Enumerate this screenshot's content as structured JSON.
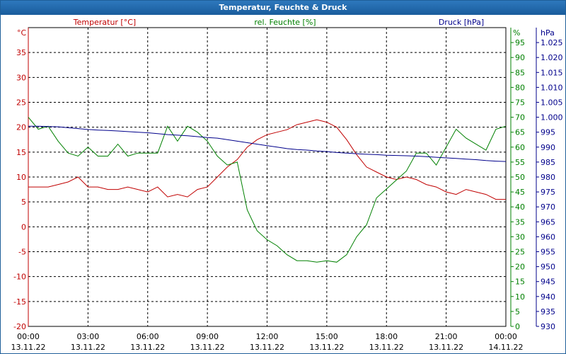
{
  "window": {
    "title": "Temperatur, Feuchte & Druck"
  },
  "colors": {
    "temperature": "#c00000",
    "humidity": "#008000",
    "pressure": "#00008b",
    "grid": "#000000",
    "title_bg": "#1f66a8"
  },
  "chart_data": {
    "type": "line",
    "title": "Temperatur, Feuchte & Druck",
    "grid": true,
    "x": [
      0,
      0.5,
      1,
      1.5,
      2,
      2.5,
      3,
      3.5,
      4,
      4.5,
      5,
      5.5,
      6,
      6.5,
      7,
      7.5,
      8,
      8.5,
      9,
      9.5,
      10,
      10.5,
      11,
      11.5,
      12,
      12.5,
      13,
      13.5,
      14,
      14.5,
      15,
      15.5,
      16,
      16.5,
      17,
      17.5,
      18,
      18.5,
      19,
      19.5,
      20,
      20.5,
      21,
      21.5,
      22,
      22.5,
      23,
      23.5,
      24
    ],
    "x_ticks": [
      {
        "time": "00:00",
        "date": "13.11.22"
      },
      {
        "time": "03:00",
        "date": "13.11.22"
      },
      {
        "time": "06:00",
        "date": "13.11.22"
      },
      {
        "time": "09:00",
        "date": "13.11.22"
      },
      {
        "time": "12:00",
        "date": "13.11.22"
      },
      {
        "time": "15:00",
        "date": "13.11.22"
      },
      {
        "time": "18:00",
        "date": "13.11.22"
      },
      {
        "time": "21:00",
        "date": "13.11.22"
      },
      {
        "time": "00:00",
        "date": "14.11.22"
      }
    ],
    "x_hours": [
      0,
      3,
      6,
      9,
      12,
      15,
      18,
      21,
      24
    ],
    "axes": {
      "left": {
        "label": "Temperatur [°C]",
        "unit": "°C",
        "range": [
          -20,
          40
        ],
        "ticks": [
          "-20",
          "-15",
          "-10",
          "-5",
          "0",
          "5",
          "10",
          "15",
          "20",
          "25",
          "30",
          "35"
        ]
      },
      "right1": {
        "label": "rel. Feuchte [%]",
        "unit": "%",
        "range": [
          0,
          100
        ],
        "ticks": [
          "0",
          "5",
          "10",
          "15",
          "20",
          "25",
          "30",
          "35",
          "40",
          "45",
          "50",
          "55",
          "60",
          "65",
          "70",
          "75",
          "80",
          "85",
          "90",
          "95"
        ]
      },
      "right2": {
        "label": "Druck [hPa]",
        "unit": "hPa",
        "range": [
          930,
          1030
        ],
        "ticks": [
          "930",
          "935",
          "940",
          "945",
          "950",
          "955",
          "960",
          "965",
          "970",
          "975",
          "980",
          "985",
          "990",
          "995",
          "1.000",
          "1.005",
          "1.010",
          "1.015",
          "1.020",
          "1.025"
        ]
      }
    },
    "series": [
      {
        "name": "Temperatur [°C]",
        "axis": "left",
        "values": [
          8,
          8,
          8,
          8.5,
          9,
          10,
          8,
          8,
          7.5,
          7.5,
          8,
          7.5,
          7,
          8,
          6,
          6.5,
          6,
          7.5,
          8,
          10,
          12,
          13.5,
          16,
          17.5,
          18.5,
          19,
          19.5,
          20.5,
          21,
          21.5,
          21,
          20,
          17.5,
          14.5,
          12,
          11,
          10,
          9.5,
          10,
          9.5,
          8.5,
          8,
          7,
          6.5,
          7.5,
          7,
          6.5,
          5.5,
          5.5
        ]
      },
      {
        "name": "rel. Feuchte [%]",
        "axis": "right1",
        "values": [
          70,
          66,
          67,
          62,
          58,
          57,
          60,
          57,
          57,
          61,
          57,
          58,
          58,
          58,
          67,
          62,
          67,
          65,
          62,
          57,
          54,
          55,
          39,
          32,
          29,
          27,
          24,
          22,
          22,
          21.5,
          22,
          21.5,
          24,
          30,
          34,
          43,
          46,
          49,
          52,
          58,
          58,
          54,
          60,
          66,
          63,
          61,
          59,
          66,
          67
        ]
      },
      {
        "name": "Druck [hPa]",
        "axis": "right2",
        "values": [
          997,
          997,
          996.9,
          996.8,
          996.5,
          996.2,
          995.9,
          995.7,
          995.6,
          995.4,
          995.2,
          995,
          994.8,
          994.5,
          994.2,
          994,
          993.8,
          993.5,
          993.2,
          993,
          992.5,
          992,
          991.5,
          991,
          990.5,
          990,
          989.5,
          989.2,
          989,
          988.7,
          988.5,
          988.2,
          988,
          987.8,
          987.6,
          987.5,
          987.3,
          987.2,
          987.1,
          987,
          986.8,
          986.6,
          986.4,
          986.2,
          986,
          985.8,
          985.5,
          985.3,
          985.2
        ]
      }
    ]
  }
}
